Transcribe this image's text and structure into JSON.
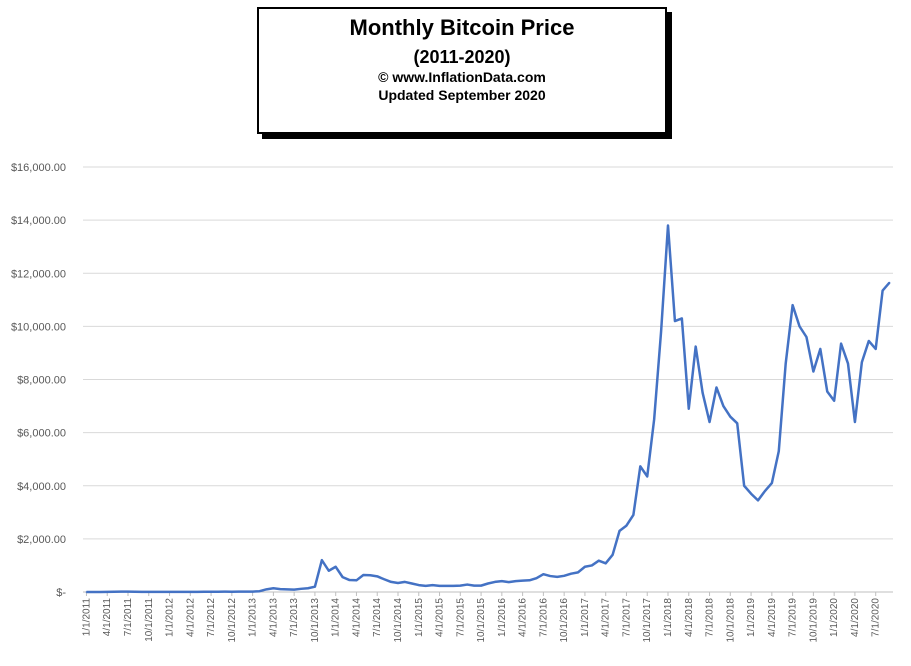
{
  "title_box": {
    "title": "Monthly Bitcoin Price",
    "subtitle": "(2011-2020)",
    "copyright": "© www.InflationData.com",
    "updated": "Updated September 2020"
  },
  "colors": {
    "line": "#4472C4",
    "grid": "#D9D9D9",
    "axis": "#BFBFBF",
    "tick_text": "#595959"
  },
  "chart_data": {
    "type": "line",
    "title": "Monthly Bitcoin Price",
    "subtitle": "(2011-2020)",
    "xlabel": "",
    "ylabel": "",
    "ylim": [
      0,
      16000
    ],
    "grid": true,
    "y_tick_labels": [
      "$-",
      "$2,000.00",
      "$4,000.00",
      "$6,000.00",
      "$8,000.00",
      "$10,000.00",
      "$12,000.00",
      "$14,000.00",
      "$16,000.00"
    ],
    "y_ticks": [
      0,
      2000,
      4000,
      6000,
      8000,
      10000,
      12000,
      14000,
      16000
    ],
    "x_tick_labels": [
      "1/1/2011",
      "4/1/2011",
      "7/1/2011",
      "10/1/2011",
      "1/1/2012",
      "4/1/2012",
      "7/1/2012",
      "10/1/2012",
      "1/1/2013",
      "4/1/2013",
      "7/1/2013",
      "10/1/2013",
      "1/1/2014",
      "4/1/2014",
      "7/1/2014",
      "10/1/2014",
      "1/1/2015",
      "4/1/2015",
      "7/1/2015",
      "10/1/2015",
      "1/1/2016",
      "4/1/2016",
      "7/1/2016",
      "10/1/2016",
      "1/1/2017",
      "4/1/2017",
      "7/1/2017",
      "10/1/2017",
      "1/1/2018",
      "4/1/2018",
      "7/1/2018",
      "10/1/2018",
      "1/1/2019",
      "4/1/2019",
      "7/1/2019",
      "10/1/2019",
      "1/1/2020",
      "4/1/2020",
      "7/1/2020"
    ],
    "series": [
      {
        "values": [
          0.3,
          1,
          1,
          3,
          8,
          15,
          14,
          9,
          5,
          3,
          3,
          4,
          6,
          5,
          5,
          5,
          5,
          7,
          9,
          10,
          12,
          11,
          12,
          13,
          15,
          30,
          100,
          140,
          110,
          100,
          90,
          120,
          140,
          200,
          1200,
          800,
          950,
          560,
          450,
          440,
          640,
          630,
          590,
          480,
          380,
          340,
          380,
          320,
          260,
          230,
          260,
          230,
          230,
          230,
          240,
          280,
          240,
          240,
          320,
          380,
          410,
          370,
          410,
          430,
          440,
          520,
          670,
          600,
          570,
          610,
          690,
          740,
          950,
          1000,
          1180,
          1080,
          1400,
          2300,
          2500,
          2900,
          4730,
          4350,
          6500,
          9800,
          13800,
          10200,
          10300,
          6900,
          9240,
          7500,
          6400,
          7700,
          7000,
          6600,
          6350,
          4000,
          3700,
          3450,
          3800,
          4100,
          5300,
          8600,
          10800,
          10000,
          9600,
          8300,
          9150,
          7550,
          7200,
          9350,
          8600,
          6400,
          8650,
          9450,
          9150,
          11350,
          11650
        ]
      }
    ]
  }
}
